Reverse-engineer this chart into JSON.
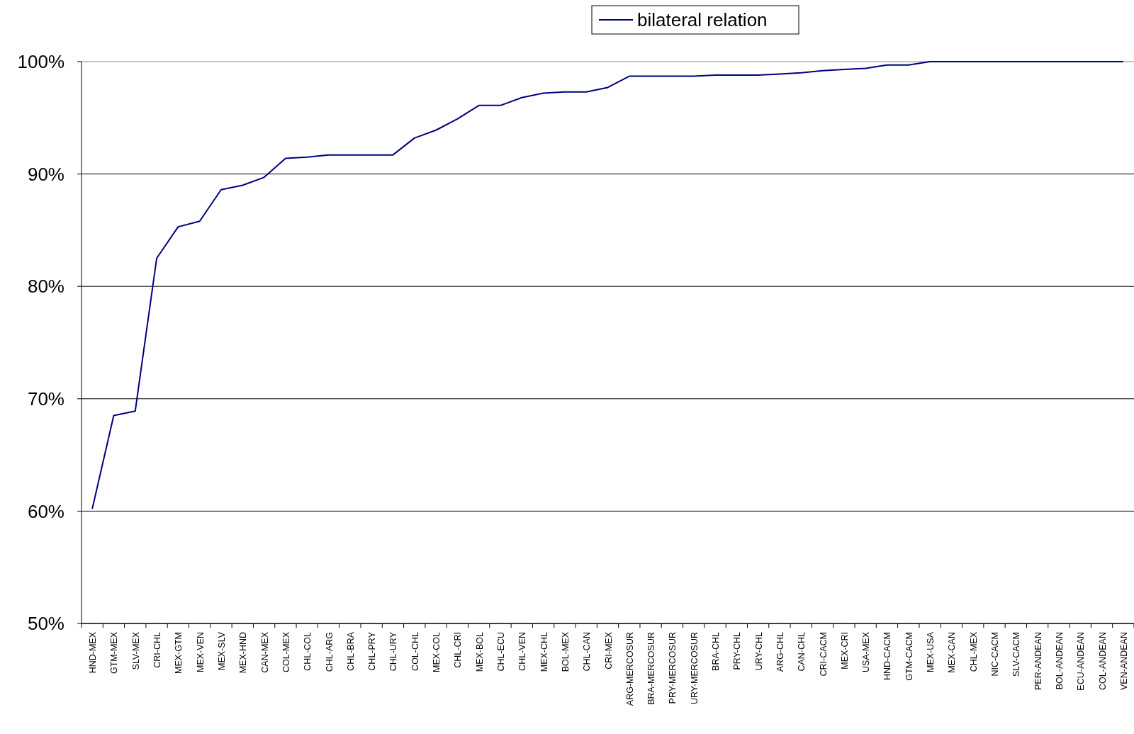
{
  "chart_data": {
    "type": "line",
    "categories": [
      "HND-MEX",
      "GTM-MEX",
      "SLV-MEX",
      "CRI-CHL",
      "MEX-GTM",
      "MEX-VEN",
      "MEX-SLV",
      "MEX-HND",
      "CAN-MEX",
      "COL-MEX",
      "CHL-COL",
      "CHL-ARG",
      "CHL-BRA",
      "CHL-PRY",
      "CHL-URY",
      "COL-CHL",
      "MEX-COL",
      "CHL-CRI",
      "MEX-BOL",
      "CHL-ECU",
      "CHL-VEN",
      "MEX-CHL",
      "BOL-MEX",
      "CHL-CAN",
      "CRI-MEX",
      "ARG-MERCOSUR",
      "BRA-MERCOSUR",
      "PRY-MERCOSUR",
      "URY-MERCOSUR",
      "BRA-CHL",
      "PRY-CHL",
      "URY-CHL",
      "ARG-CHL",
      "CAN-CHL",
      "CRI-CACM",
      "MEX-CRI",
      "USA-MEX",
      "HND-CACM",
      "GTM-CACM",
      "MEX-USA",
      "MEX-CAN",
      "CHL-MEX",
      "NIC-CACM",
      "SLV-CACM",
      "PER-ANDEAN",
      "BOL-ANDEAN",
      "ECU-ANDEAN",
      "COL-ANDEAN",
      "VEN-ANDEAN"
    ],
    "series": [
      {
        "name": "bilateral relation",
        "color": "#000080",
        "values": [
          60.2,
          68.5,
          68.9,
          82.5,
          85.3,
          85.8,
          88.6,
          89.0,
          89.7,
          91.4,
          91.5,
          91.7,
          91.7,
          91.7,
          91.7,
          93.2,
          93.9,
          94.9,
          96.1,
          96.1,
          96.8,
          97.2,
          97.3,
          97.3,
          97.7,
          98.7,
          98.7,
          98.7,
          98.7,
          98.8,
          98.8,
          98.8,
          98.9,
          99.0,
          99.2,
          99.3,
          99.4,
          99.7,
          99.7,
          100,
          100,
          100,
          100,
          100,
          100,
          100,
          100,
          100,
          100
        ]
      }
    ],
    "ylim": [
      50,
      100
    ],
    "yticks": [
      {
        "value": 50,
        "label": "50%"
      },
      {
        "value": 60,
        "label": "60%"
      },
      {
        "value": 70,
        "label": "70%"
      },
      {
        "value": 80,
        "label": "80%"
      },
      {
        "value": 90,
        "label": "90%"
      },
      {
        "value": 100,
        "label": "100%"
      }
    ],
    "grid": "y",
    "legend": "top",
    "marker": "none",
    "line_style": "solid"
  }
}
